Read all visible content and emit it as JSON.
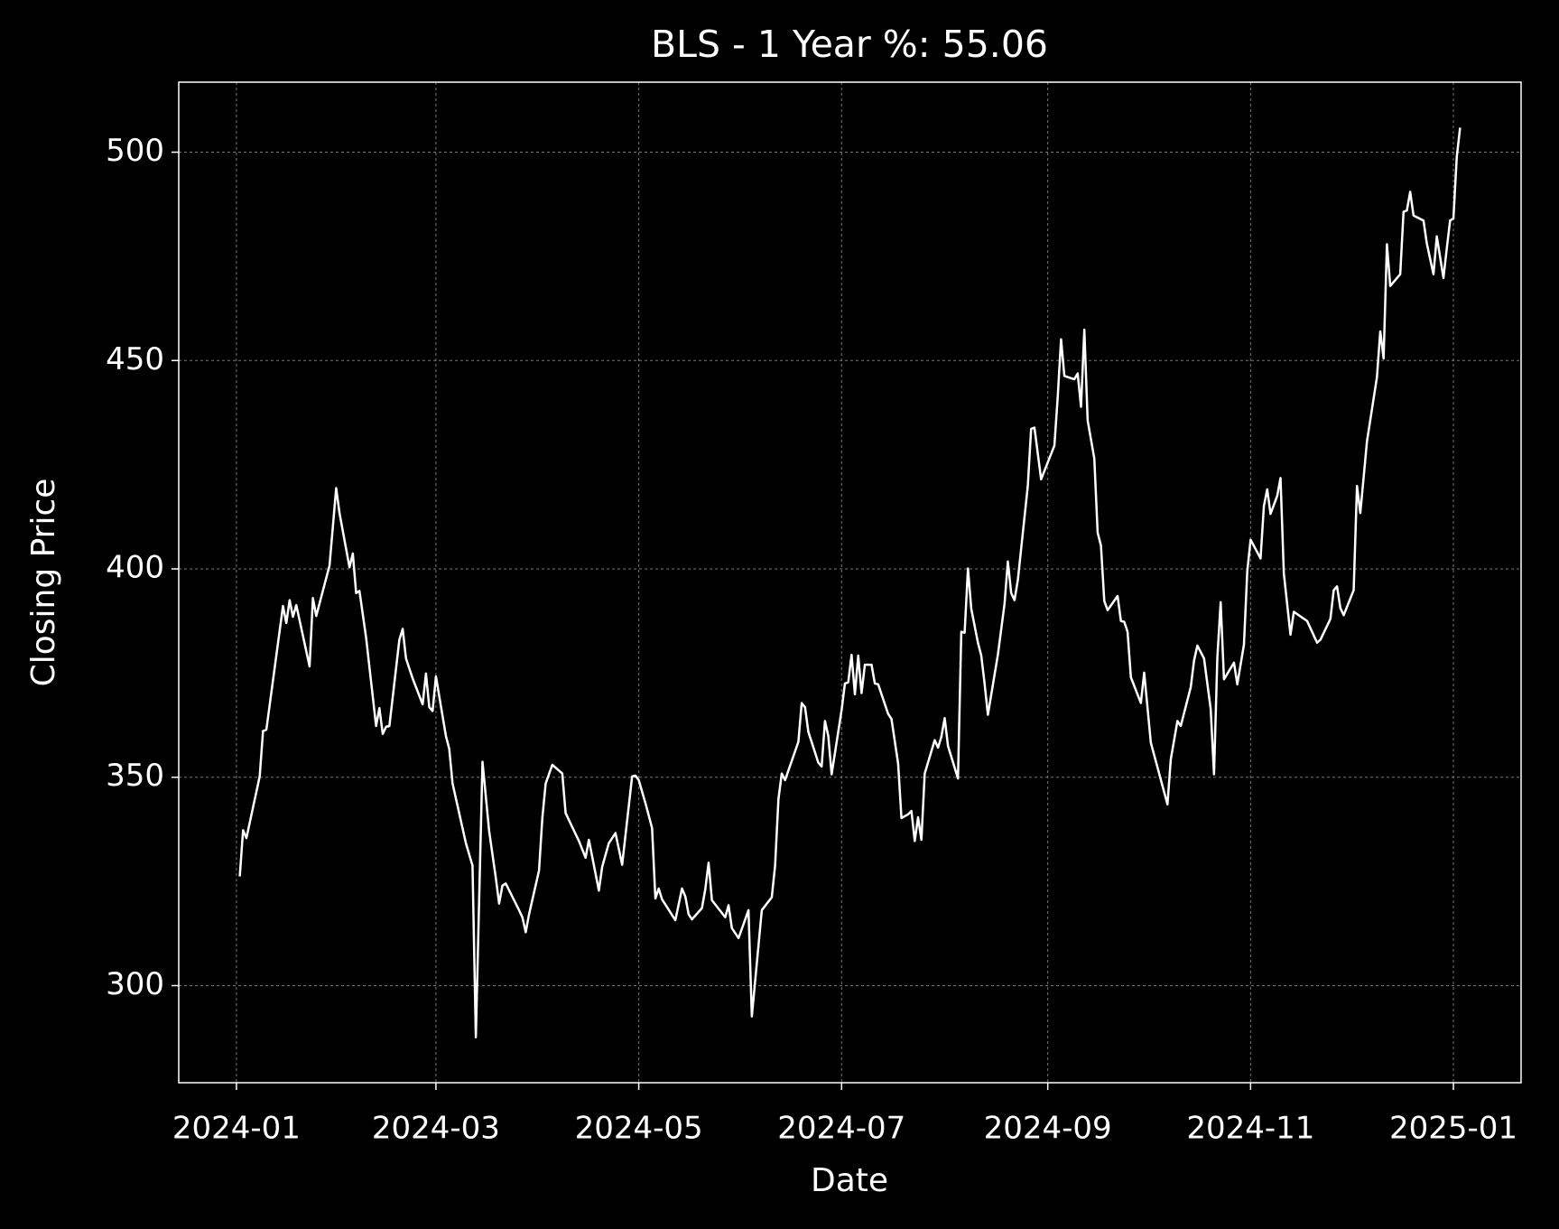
{
  "chart_data": {
    "type": "line",
    "title": "BLS - 1 Year %: 55.06",
    "x_label": "Date",
    "y_label": "Closing Price",
    "color": "#ffffff",
    "grid": true,
    "xlim": [
      -17.35,
      386.35
    ],
    "xticks": [
      {
        "value": 0,
        "label": "2024-01"
      },
      {
        "value": 60,
        "label": "2024-03"
      },
      {
        "value": 121,
        "label": "2024-05"
      },
      {
        "value": 182,
        "label": "2024-07"
      },
      {
        "value": 244,
        "label": "2024-09"
      },
      {
        "value": 305,
        "label": "2024-11"
      },
      {
        "value": 366,
        "label": "2025-01"
      }
    ],
    "ylim": [
      276.7,
      516.8
    ],
    "yticks": [
      300,
      350,
      400,
      450,
      500
    ],
    "x": [
      1,
      2,
      3,
      7,
      8,
      9,
      14,
      15,
      16,
      17,
      18,
      22,
      23,
      24,
      28,
      30,
      31,
      34,
      35,
      36,
      37,
      39,
      42,
      43,
      44,
      45,
      46,
      49,
      50,
      51,
      53,
      56,
      57,
      58,
      59,
      60,
      63,
      64,
      65,
      69,
      71,
      72,
      74,
      76,
      78,
      79,
      80,
      81,
      85,
      86,
      87,
      88,
      91,
      92,
      93,
      95,
      98,
      99,
      103,
      105,
      106,
      109,
      110,
      112,
      114,
      116,
      119,
      120,
      121,
      123,
      125,
      126,
      127,
      128,
      132,
      134,
      135,
      136,
      137,
      140,
      141,
      142,
      143,
      147,
      148,
      149,
      151,
      154,
      155,
      158,
      161,
      162,
      163,
      164,
      165,
      169,
      170,
      171,
      172,
      175,
      176,
      177,
      178,
      179,
      182,
      183,
      184,
      185,
      186,
      187,
      188,
      189,
      191,
      192,
      193,
      196,
      197,
      199,
      200,
      202,
      203,
      204,
      205,
      206,
      207,
      210,
      211,
      212,
      213,
      214,
      217,
      218,
      219,
      220,
      221,
      223,
      224,
      225,
      226,
      229,
      231,
      232,
      233,
      234,
      235,
      238,
      239,
      240,
      242,
      246,
      247,
      248,
      249,
      252,
      253,
      254,
      255,
      256,
      258,
      259,
      260,
      261,
      262,
      265,
      266,
      267,
      268,
      269,
      272,
      273,
      275,
      280,
      281,
      283,
      284,
      287,
      288,
      289,
      291,
      293,
      294,
      295,
      296,
      297,
      300,
      301,
      303,
      304,
      305,
      308,
      309,
      310,
      311,
      313,
      314,
      315,
      317,
      318,
      322,
      325,
      326,
      329,
      330,
      331,
      332,
      333,
      336,
      337,
      338,
      340,
      343,
      344,
      345,
      346,
      347,
      350,
      351,
      352,
      353,
      354,
      357,
      358,
      360,
      361,
      363,
      364,
      365,
      366,
      367,
      368
    ],
    "values": [
      326.2,
      337.3,
      335.4,
      350.2,
      361.1,
      361.4,
      391.1,
      387.0,
      392.5,
      388.5,
      391.3,
      376.6,
      393.0,
      388.7,
      400.8,
      419.4,
      413.4,
      400.4,
      403.7,
      394.2,
      394.7,
      383.5,
      362.3,
      366.6,
      360.4,
      362.1,
      362.3,
      383.0,
      385.6,
      378.5,
      373.7,
      367.5,
      374.9,
      366.8,
      365.9,
      374.2,
      359.9,
      356.8,
      348.5,
      334.2,
      328.8,
      287.6,
      353.7,
      337.1,
      325.9,
      319.7,
      324.0,
      324.5,
      318.1,
      316.4,
      312.8,
      317.1,
      327.6,
      340.2,
      348.5,
      353.0,
      350.9,
      341.4,
      334.7,
      330.7,
      335.0,
      322.8,
      328.5,
      334.2,
      336.6,
      329.0,
      350.2,
      350.4,
      349.3,
      343.8,
      337.8,
      320.9,
      323.3,
      320.7,
      315.7,
      323.3,
      321.4,
      317.1,
      315.9,
      318.6,
      323.1,
      329.5,
      320.5,
      316.4,
      319.3,
      313.8,
      311.4,
      318.1,
      292.6,
      318.1,
      321.2,
      328.8,
      344.7,
      350.9,
      349.3,
      358.5,
      367.8,
      366.8,
      360.9,
      353.5,
      352.6,
      363.5,
      359.9,
      350.7,
      366.1,
      372.5,
      372.8,
      379.4,
      369.9,
      379.2,
      370.2,
      377.0,
      377.0,
      372.5,
      372.3,
      365.2,
      364.0,
      353.3,
      340.2,
      341.1,
      341.9,
      334.7,
      340.4,
      335.0,
      350.9,
      358.9,
      357.1,
      359.7,
      364.2,
      357.5,
      349.7,
      384.9,
      384.7,
      400.1,
      390.4,
      382.3,
      379.2,
      372.5,
      365.0,
      379.4,
      391.6,
      401.8,
      394.2,
      392.5,
      397.3,
      419.9,
      433.6,
      433.9,
      421.5,
      429.6,
      441.3,
      455.1,
      446.3,
      445.5,
      446.9,
      438.9,
      457.4,
      435.6,
      426.5,
      408.7,
      405.6,
      392.3,
      390.1,
      393.5,
      387.5,
      387.3,
      384.9,
      374.0,
      367.8,
      375.1,
      358.3,
      343.5,
      354.3,
      363.5,
      362.3,
      371.6,
      378.0,
      381.6,
      378.5,
      366.4,
      350.7,
      378.7,
      392.0,
      373.5,
      377.5,
      372.3,
      381.8,
      399.4,
      407.0,
      402.5,
      415.1,
      419.1,
      413.2,
      417.5,
      421.8,
      398.9,
      384.2,
      389.7,
      387.5,
      382.3,
      383.0,
      388.0,
      394.9,
      395.8,
      390.6,
      388.9,
      394.9,
      419.9,
      413.4,
      430.6,
      446.0,
      457.0,
      450.5,
      477.9,
      467.9,
      470.7,
      485.7,
      486.0,
      490.5,
      484.8,
      483.6,
      478.1,
      470.7,
      479.8,
      469.8,
      476.9,
      483.6,
      484.1,
      498.8,
      505.9
    ]
  }
}
